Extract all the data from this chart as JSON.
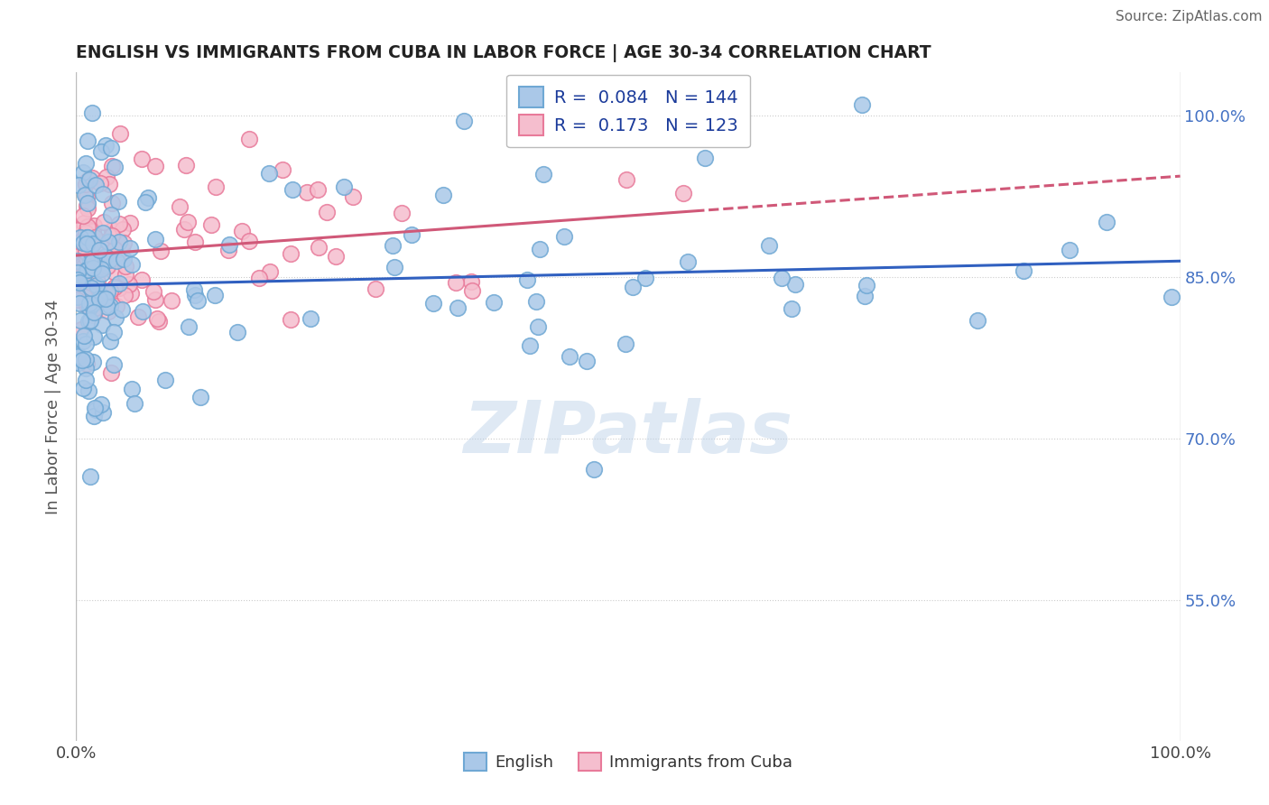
{
  "title": "ENGLISH VS IMMIGRANTS FROM CUBA IN LABOR FORCE | AGE 30-34 CORRELATION CHART",
  "source": "Source: ZipAtlas.com",
  "ylabel": "In Labor Force | Age 30-34",
  "watermark": "ZIPatlas",
  "english_R": 0.084,
  "english_N": 144,
  "cuba_R": 0.173,
  "cuba_N": 123,
  "english_color": "#aac8e8",
  "english_edge": "#6fa8d4",
  "cuba_color": "#f5bece",
  "cuba_edge": "#e87a9a",
  "english_line_color": "#3060c0",
  "cuba_line_color": "#d05878",
  "xlim": [
    0.0,
    1.0
  ],
  "ylim": [
    0.42,
    1.04
  ],
  "x_tick_labels": [
    "0.0%",
    "100.0%"
  ],
  "y_ticks": [
    0.55,
    0.7,
    0.85,
    1.0
  ],
  "right_ytick_labels": [
    "55.0%",
    "70.0%",
    "85.0%",
    "100.0%"
  ],
  "legend_labels": [
    "English",
    "Immigrants from Cuba"
  ],
  "title_color": "#222222",
  "axis_label_color": "#555555",
  "tick_color": "#4472c4",
  "legend_R_N_color": "#1a3a9a"
}
